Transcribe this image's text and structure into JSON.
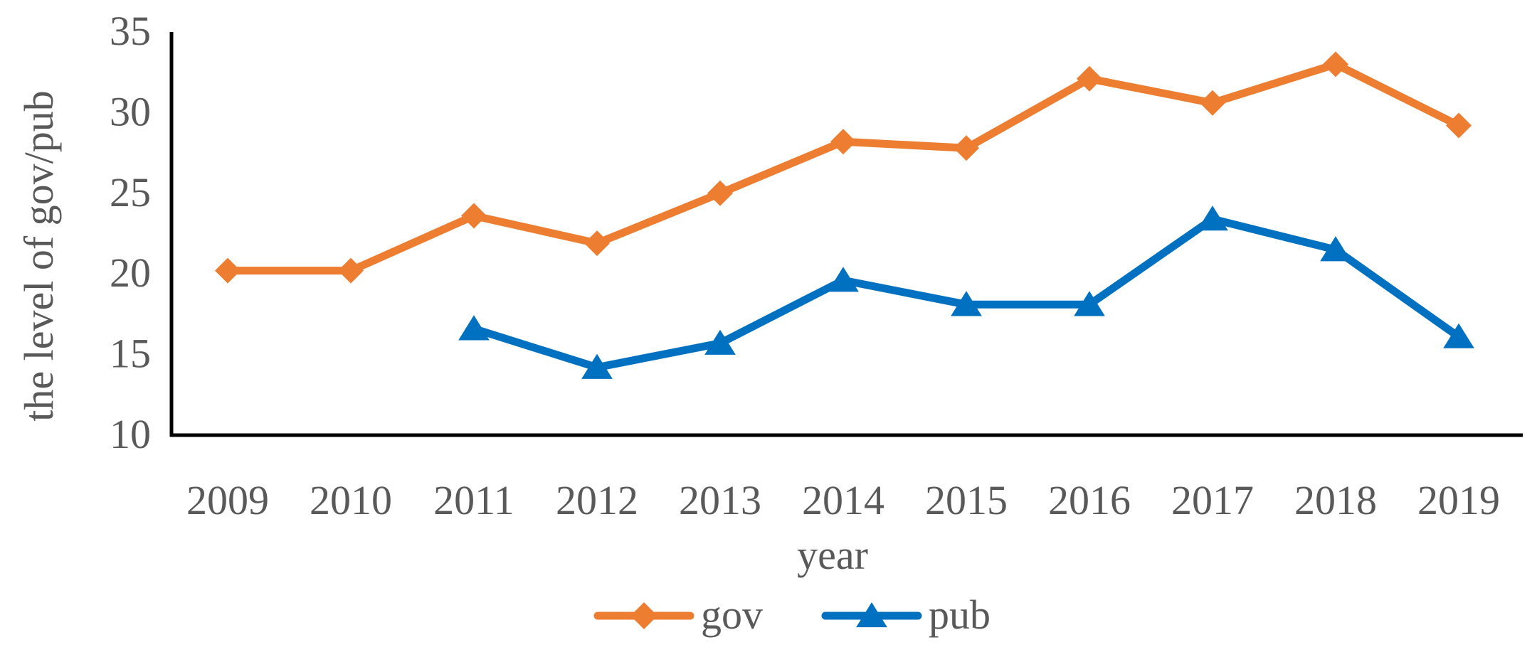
{
  "chart_data": {
    "type": "line",
    "x": [
      "2009",
      "2010",
      "2011",
      "2012",
      "2013",
      "2014",
      "2015",
      "2016",
      "2017",
      "2018",
      "2019"
    ],
    "series": [
      {
        "name": "gov",
        "color": "#ED7D31",
        "marker": "diamond",
        "values": [
          20.2,
          20.2,
          23.6,
          21.9,
          25.0,
          28.2,
          27.8,
          32.1,
          30.6,
          33.0,
          29.2
        ]
      },
      {
        "name": "pub",
        "color": "#0070C0",
        "marker": "triangle",
        "values": [
          null,
          null,
          16.6,
          14.2,
          15.7,
          19.6,
          18.1,
          18.1,
          23.4,
          21.5,
          16.1
        ]
      }
    ],
    "xlabel": "year",
    "ylabel": "the level of gov/pub",
    "ylim": [
      10,
      35
    ],
    "yticks": [
      10,
      15,
      20,
      25,
      30,
      35
    ],
    "grid": false,
    "legend": "bottom"
  }
}
